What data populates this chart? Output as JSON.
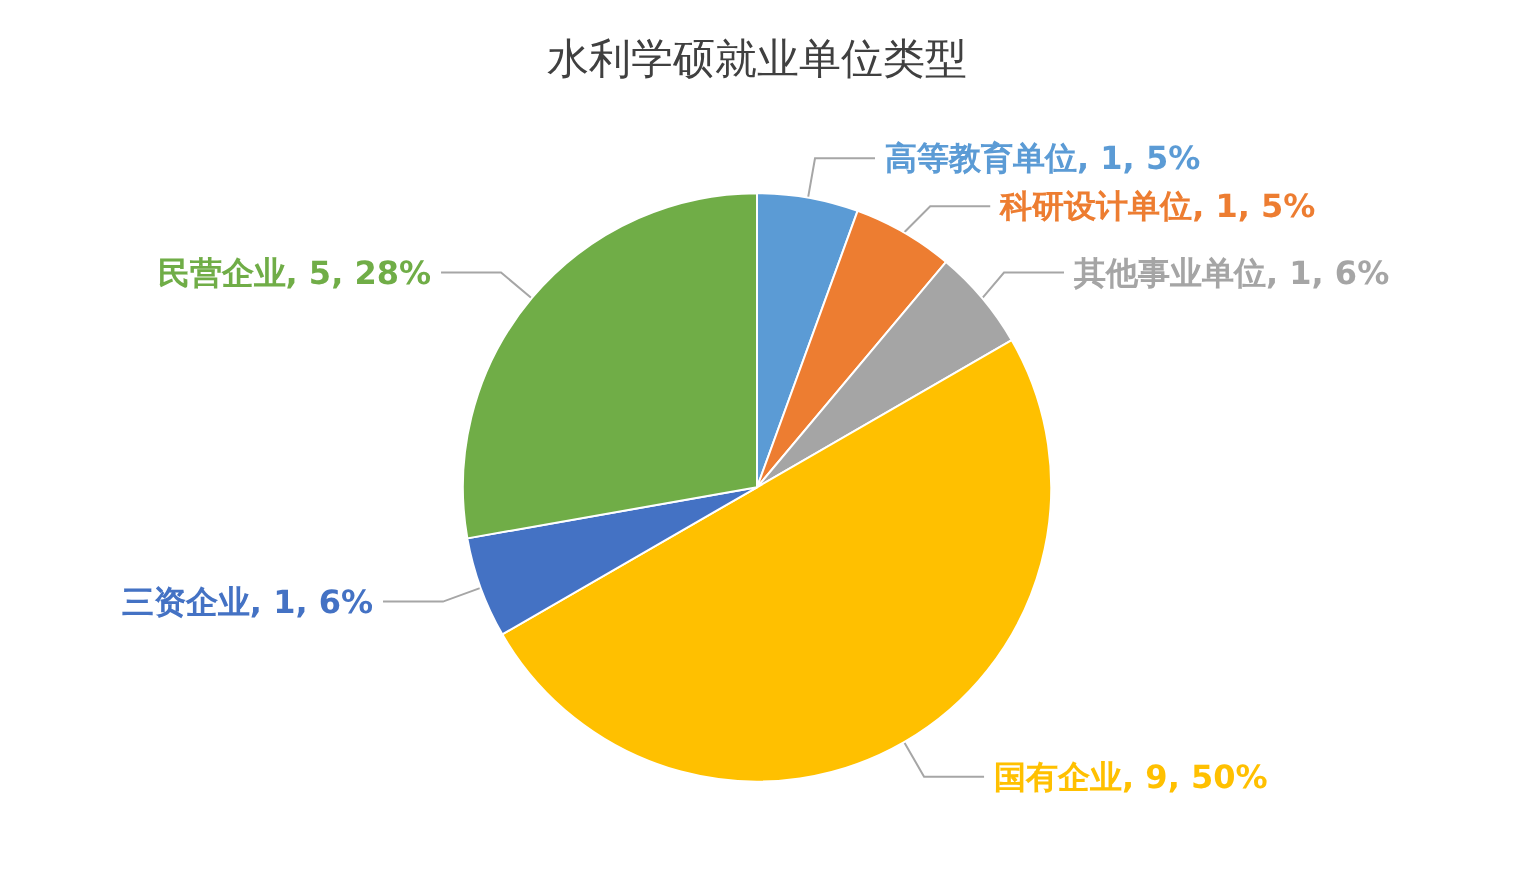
{
  "chart_data": {
    "type": "pie",
    "title": "水利学硕就业单位类型",
    "categories": [
      "高等教育单位",
      "科研设计单位",
      "其他事业单位",
      "国有企业",
      "三资企业",
      "民营企业"
    ],
    "values": [
      1,
      1,
      1,
      9,
      1,
      5
    ],
    "colors": [
      "#5b9bd5",
      "#ed7d31",
      "#a5a5a5",
      "#ffc000",
      "#4472c4",
      "#70ad47"
    ],
    "value_labels": [
      "1, 5%",
      "1, 5%",
      "1, 6%",
      "9, 50%",
      "1, 6%",
      "5, 28%"
    ],
    "legend": false
  }
}
